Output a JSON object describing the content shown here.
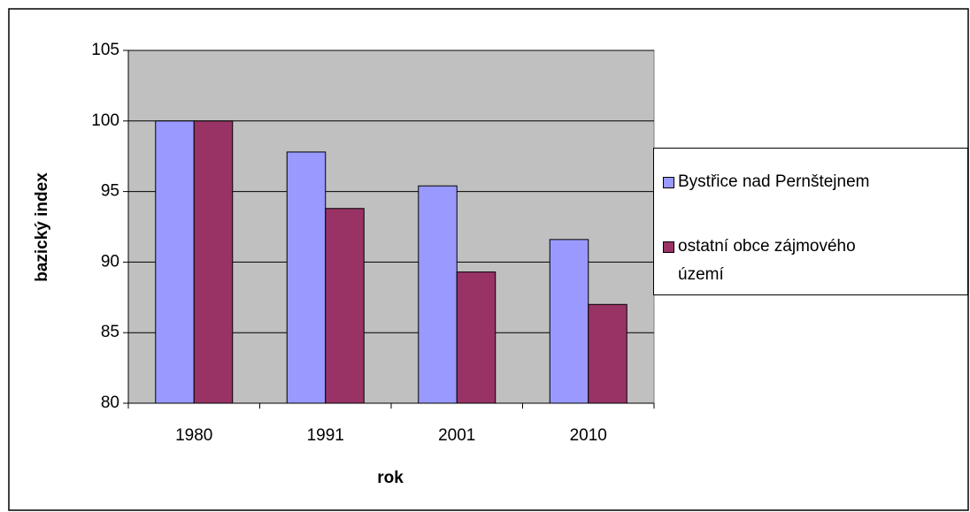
{
  "chart_data": {
    "type": "bar",
    "categories": [
      "1980",
      "1991",
      "2001",
      "2010"
    ],
    "series": [
      {
        "name": "Bystřice nad Pernštejnem",
        "color": "#9999ff",
        "values": [
          100,
          97.8,
          95.4,
          91.6
        ]
      },
      {
        "name": "ostatní obce zájmového území",
        "color": "#993366",
        "values": [
          100,
          93.8,
          89.3,
          87.0
        ]
      }
    ],
    "x_label": "rok",
    "y_label": "bazický index",
    "ylim": [
      80,
      105
    ],
    "yticks": [
      80,
      85,
      90,
      95,
      100,
      105
    ],
    "grid": true,
    "legend": "right"
  }
}
